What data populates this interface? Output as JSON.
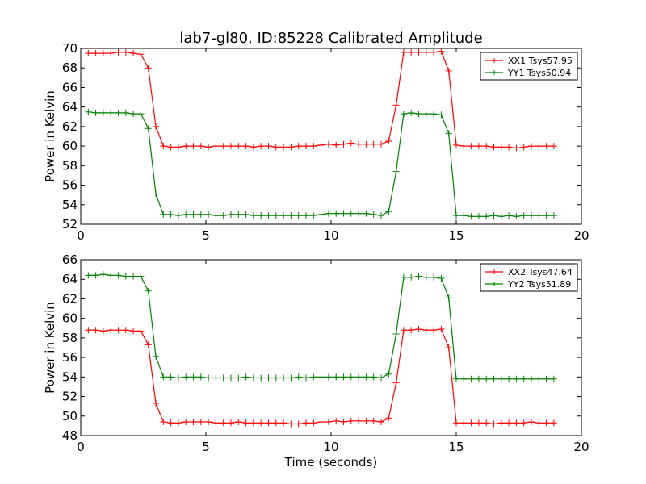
{
  "title": "lab7-gl80, ID:85228 Calibrated Amplitude",
  "chart_data": [
    {
      "type": "line",
      "title": "lab7-gl80, ID:85228 Calibrated Amplitude",
      "xlabel": "",
      "ylabel": "Power in Kelvin",
      "xlim": [
        0,
        20
      ],
      "ylim": [
        52,
        70
      ],
      "xticks": [
        0,
        5,
        10,
        15,
        20
      ],
      "yticks": [
        52,
        54,
        56,
        58,
        60,
        62,
        64,
        66,
        68,
        70
      ],
      "legend_position": "top-right",
      "x": [
        0.3,
        0.6,
        0.9,
        1.2,
        1.5,
        1.8,
        2.1,
        2.4,
        2.7,
        3.0,
        3.3,
        3.6,
        3.9,
        4.2,
        4.5,
        4.8,
        5.1,
        5.4,
        5.7,
        6.0,
        6.3,
        6.6,
        6.9,
        7.2,
        7.5,
        7.8,
        8.1,
        8.4,
        8.7,
        9.0,
        9.3,
        9.6,
        9.9,
        10.2,
        10.5,
        10.8,
        11.1,
        11.4,
        11.7,
        12.0,
        12.3,
        12.6,
        12.9,
        13.2,
        13.5,
        13.8,
        14.1,
        14.4,
        14.7,
        15.0,
        15.3,
        15.6,
        15.9,
        16.2,
        16.5,
        16.8,
        17.1,
        17.4,
        17.7,
        18.0,
        18.3,
        18.6,
        18.9
      ],
      "series": [
        {
          "name": "XX1 Tsys57.95",
          "color": "#ff0000",
          "values": [
            69.5,
            69.5,
            69.5,
            69.5,
            69.6,
            69.6,
            69.5,
            69.4,
            68.0,
            62.0,
            60.0,
            59.9,
            59.9,
            60.0,
            60.0,
            60.0,
            59.9,
            60.0,
            60.0,
            60.0,
            60.0,
            60.0,
            59.9,
            60.0,
            60.0,
            59.9,
            59.9,
            59.9,
            60.0,
            60.0,
            60.0,
            60.1,
            60.2,
            60.1,
            60.2,
            60.3,
            60.2,
            60.2,
            60.2,
            60.2,
            60.5,
            64.2,
            69.6,
            69.6,
            69.6,
            69.6,
            69.6,
            69.7,
            67.7,
            60.1,
            60.0,
            60.0,
            60.0,
            60.0,
            59.9,
            59.9,
            59.9,
            59.8,
            59.9,
            60.0,
            60.0,
            60.0,
            60.0
          ]
        },
        {
          "name": "YY1 Tsys50.94",
          "color": "#008000",
          "values": [
            63.5,
            63.4,
            63.4,
            63.4,
            63.4,
            63.4,
            63.3,
            63.3,
            61.8,
            55.1,
            53.0,
            53.0,
            52.9,
            53.0,
            53.0,
            53.0,
            53.0,
            52.9,
            52.9,
            53.0,
            53.0,
            53.0,
            52.9,
            52.9,
            52.9,
            52.9,
            52.9,
            52.9,
            52.9,
            52.9,
            52.9,
            53.0,
            53.1,
            53.1,
            53.1,
            53.1,
            53.1,
            53.1,
            53.0,
            52.9,
            53.3,
            57.4,
            63.3,
            63.4,
            63.3,
            63.3,
            63.3,
            63.2,
            61.3,
            52.9,
            52.9,
            52.8,
            52.8,
            52.8,
            52.9,
            52.8,
            52.9,
            52.8,
            52.9,
            52.9,
            52.9,
            52.9,
            52.9
          ]
        }
      ]
    },
    {
      "type": "line",
      "title": "",
      "xlabel": "Time (seconds)",
      "ylabel": "Power in Kelvin",
      "xlim": [
        0,
        20
      ],
      "ylim": [
        48,
        66
      ],
      "xticks": [
        0,
        5,
        10,
        15,
        20
      ],
      "yticks": [
        48,
        50,
        52,
        54,
        56,
        58,
        60,
        62,
        64,
        66
      ],
      "legend_position": "top-right",
      "x": [
        0.3,
        0.6,
        0.9,
        1.2,
        1.5,
        1.8,
        2.1,
        2.4,
        2.7,
        3.0,
        3.3,
        3.6,
        3.9,
        4.2,
        4.5,
        4.8,
        5.1,
        5.4,
        5.7,
        6.0,
        6.3,
        6.6,
        6.9,
        7.2,
        7.5,
        7.8,
        8.1,
        8.4,
        8.7,
        9.0,
        9.3,
        9.6,
        9.9,
        10.2,
        10.5,
        10.8,
        11.1,
        11.4,
        11.7,
        12.0,
        12.3,
        12.6,
        12.9,
        13.2,
        13.5,
        13.8,
        14.1,
        14.4,
        14.7,
        15.0,
        15.3,
        15.6,
        15.9,
        16.2,
        16.5,
        16.8,
        17.1,
        17.4,
        17.7,
        18.0,
        18.3,
        18.6,
        18.9
      ],
      "series": [
        {
          "name": "XX2 Tsys47.64",
          "color": "#ff0000",
          "values": [
            58.8,
            58.8,
            58.7,
            58.8,
            58.8,
            58.8,
            58.7,
            58.7,
            57.3,
            51.3,
            49.4,
            49.3,
            49.3,
            49.4,
            49.4,
            49.4,
            49.4,
            49.3,
            49.3,
            49.3,
            49.4,
            49.3,
            49.3,
            49.3,
            49.3,
            49.3,
            49.3,
            49.2,
            49.2,
            49.3,
            49.3,
            49.4,
            49.4,
            49.5,
            49.4,
            49.5,
            49.5,
            49.5,
            49.5,
            49.4,
            49.8,
            53.4,
            58.8,
            58.8,
            58.9,
            58.8,
            58.8,
            58.9,
            57.0,
            49.3,
            49.3,
            49.3,
            49.3,
            49.3,
            49.2,
            49.3,
            49.3,
            49.3,
            49.3,
            49.4,
            49.3,
            49.3,
            49.3
          ]
        },
        {
          "name": "YY2 Tsys51.89",
          "color": "#008000",
          "values": [
            64.4,
            64.4,
            64.5,
            64.4,
            64.4,
            64.3,
            64.3,
            64.3,
            62.8,
            56.1,
            54.0,
            54.0,
            53.9,
            54.0,
            54.0,
            54.0,
            53.9,
            53.9,
            53.9,
            53.9,
            53.9,
            54.0,
            53.9,
            53.9,
            53.9,
            53.9,
            53.9,
            53.9,
            54.0,
            53.9,
            54.0,
            54.0,
            54.0,
            54.0,
            54.0,
            54.0,
            54.0,
            54.0,
            54.0,
            53.9,
            54.3,
            58.4,
            64.2,
            64.2,
            64.3,
            64.2,
            64.2,
            64.1,
            62.1,
            53.8,
            53.8,
            53.8,
            53.8,
            53.8,
            53.8,
            53.8,
            53.8,
            53.8,
            53.8,
            53.8,
            53.8,
            53.8,
            53.8
          ]
        }
      ]
    }
  ]
}
